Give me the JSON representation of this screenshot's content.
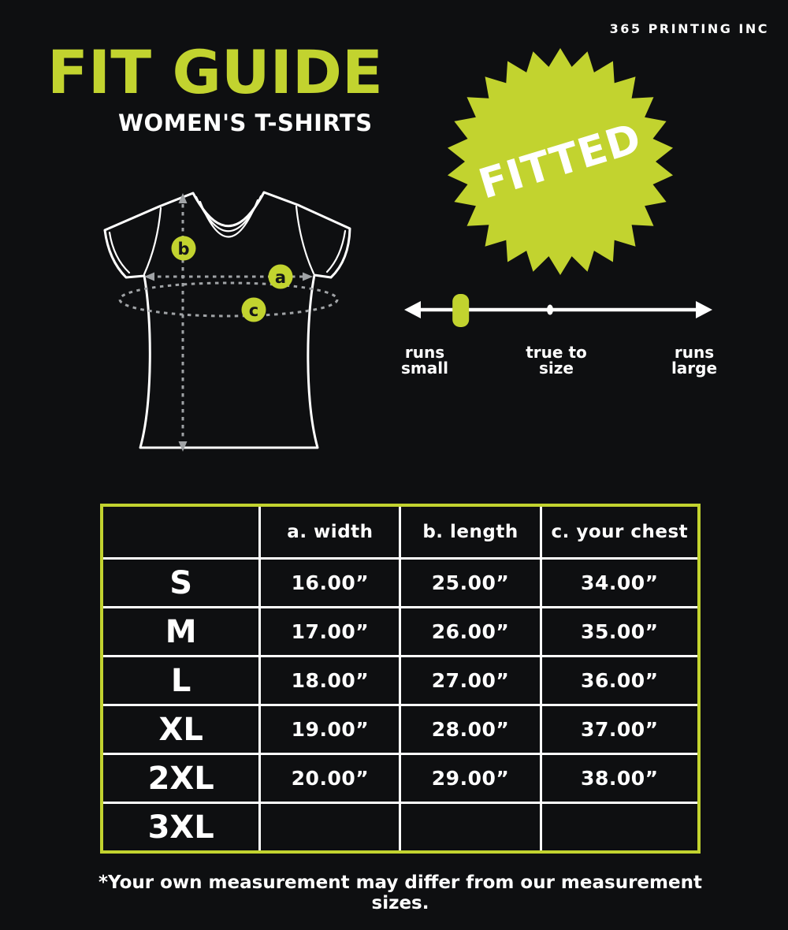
{
  "brand": "365 PRINTING INC",
  "header": {
    "title": "FIT GUIDE",
    "subtitle": "WOMEN'S T-SHIRTS"
  },
  "badge": {
    "label": "FITTED"
  },
  "colors": {
    "accent": "#c2d32f",
    "background": "#0e0f11",
    "text": "#ffffff"
  },
  "diagram": {
    "markers": {
      "a": "a",
      "b": "b",
      "c": "c"
    }
  },
  "fit_scale": {
    "marker_fraction": 0.18,
    "labels": [
      {
        "line1": "runs",
        "line2": "small"
      },
      {
        "line1": "true to",
        "line2": "size"
      },
      {
        "line1": "runs",
        "line2": "large"
      }
    ]
  },
  "size_table": {
    "headers": [
      "",
      "a. width",
      "b. length",
      "c. your chest"
    ],
    "rows": [
      {
        "size": "S",
        "width": "16.00”",
        "length": "25.00”",
        "chest": "34.00”"
      },
      {
        "size": "M",
        "width": "17.00”",
        "length": "26.00”",
        "chest": "35.00”"
      },
      {
        "size": "L",
        "width": "18.00”",
        "length": "27.00”",
        "chest": "36.00”"
      },
      {
        "size": "XL",
        "width": "19.00”",
        "length": "28.00”",
        "chest": "37.00”"
      },
      {
        "size": "2XL",
        "width": "20.00”",
        "length": "29.00”",
        "chest": "38.00”"
      },
      {
        "size": "3XL",
        "width": "",
        "length": "",
        "chest": ""
      }
    ]
  },
  "footnote": "*Your own measurement may differ from our measurement sizes."
}
